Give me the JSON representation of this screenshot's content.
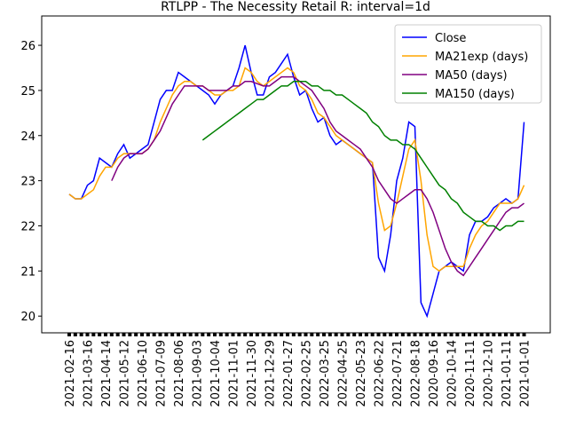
{
  "chart_data": {
    "type": "line",
    "title": "RTLPP - The Necessity Retail R: interval=1d",
    "categories": [
      "2021-02-16",
      null,
      null,
      "2021-03-16",
      null,
      null,
      "2021-04-14",
      null,
      null,
      "2021-05-12",
      null,
      null,
      "2021-06-10",
      null,
      null,
      "2021-07-09",
      null,
      null,
      "2021-08-06",
      null,
      null,
      "2021-09-03",
      null,
      null,
      "2021-10-04",
      null,
      null,
      "2021-11-01",
      null,
      null,
      "2021-11-30",
      null,
      null,
      "2021-12-29",
      null,
      null,
      "2022-01-27",
      null,
      null,
      "2022-02-25",
      null,
      null,
      "2022-03-25",
      null,
      null,
      "2022-04-25",
      null,
      null,
      "2022-05-23",
      null,
      null,
      "2022-06-22",
      null,
      null,
      "2022-07-21",
      null,
      null,
      "2022-08-18",
      null,
      null,
      "2020-09-16",
      null,
      null,
      "2020-10-14",
      null,
      null,
      "2020-11-11",
      null,
      null,
      "2020-12-10",
      null,
      null,
      "2021-01-11",
      null,
      null,
      "2021-01-01"
    ],
    "series": [
      {
        "name": "Close",
        "color": "#0000ff",
        "values": [
          22.7,
          22.6,
          22.6,
          22.9,
          23.0,
          23.5,
          23.4,
          23.3,
          23.6,
          23.8,
          23.5,
          23.6,
          23.7,
          23.8,
          24.3,
          24.8,
          25.0,
          25.0,
          25.4,
          25.3,
          25.2,
          25.1,
          25.0,
          24.9,
          24.7,
          24.9,
          25.0,
          25.1,
          25.5,
          26.0,
          25.4,
          24.9,
          24.9,
          25.3,
          25.4,
          25.6,
          25.8,
          25.3,
          24.9,
          25.0,
          24.6,
          24.3,
          24.4,
          24.0,
          23.8,
          23.9,
          23.8,
          23.7,
          23.6,
          23.5,
          23.4,
          21.3,
          21.0,
          21.8,
          23.0,
          23.5,
          24.3,
          24.2,
          20.3,
          20.0,
          20.5,
          21.0,
          21.1,
          21.2,
          21.1,
          21.0,
          21.8,
          22.1,
          22.1,
          22.2,
          22.4,
          22.5,
          22.6,
          22.5,
          22.6,
          24.3
        ]
      },
      {
        "name": "MA21exp (days)",
        "color": "#ffa500",
        "values": [
          22.7,
          22.6,
          22.6,
          22.7,
          22.8,
          23.1,
          23.3,
          23.3,
          23.5,
          23.6,
          23.6,
          23.6,
          23.6,
          23.7,
          23.9,
          24.3,
          24.6,
          24.9,
          25.1,
          25.2,
          25.2,
          25.1,
          25.1,
          25.0,
          24.9,
          24.9,
          25.0,
          25.0,
          25.1,
          25.5,
          25.4,
          25.2,
          25.1,
          25.2,
          25.3,
          25.4,
          25.5,
          25.4,
          25.1,
          25.0,
          24.8,
          24.5,
          24.4,
          24.2,
          24.0,
          23.9,
          23.8,
          23.7,
          23.6,
          23.5,
          23.4,
          22.5,
          21.9,
          22.0,
          22.5,
          23.1,
          23.7,
          23.9,
          23.0,
          21.8,
          21.1,
          21.0,
          21.1,
          21.1,
          21.1,
          21.1,
          21.5,
          21.8,
          22.0,
          22.1,
          22.3,
          22.5,
          22.5,
          22.5,
          22.6,
          22.9
        ]
      },
      {
        "name": "MA50 (days)",
        "color": "#800080",
        "values": [
          null,
          null,
          null,
          null,
          null,
          null,
          null,
          23.0,
          23.3,
          23.5,
          23.6,
          23.6,
          23.6,
          23.7,
          23.9,
          24.1,
          24.4,
          24.7,
          24.9,
          25.1,
          25.1,
          25.1,
          25.1,
          25.0,
          25.0,
          25.0,
          25.0,
          25.1,
          25.1,
          25.2,
          25.2,
          25.15,
          25.1,
          25.1,
          25.2,
          25.3,
          25.3,
          25.3,
          25.2,
          25.1,
          25.0,
          24.8,
          24.6,
          24.3,
          24.1,
          24.0,
          23.9,
          23.8,
          23.7,
          23.5,
          23.3,
          23.0,
          22.8,
          22.6,
          22.5,
          22.6,
          22.7,
          22.8,
          22.8,
          22.6,
          22.3,
          21.9,
          21.5,
          21.2,
          21.0,
          20.9,
          21.1,
          21.3,
          21.5,
          21.7,
          21.9,
          22.1,
          22.3,
          22.4,
          22.4,
          22.5
        ]
      },
      {
        "name": "MA150 (days)",
        "color": "#008000",
        "values": [
          null,
          null,
          null,
          null,
          null,
          null,
          null,
          null,
          null,
          null,
          null,
          null,
          null,
          null,
          null,
          null,
          null,
          null,
          null,
          null,
          null,
          null,
          23.9,
          24.0,
          24.1,
          24.2,
          24.3,
          24.4,
          24.5,
          24.6,
          24.7,
          24.8,
          24.8,
          24.9,
          25.0,
          25.1,
          25.1,
          25.2,
          25.2,
          25.2,
          25.1,
          25.1,
          25.0,
          25.0,
          24.9,
          24.9,
          24.8,
          24.7,
          24.6,
          24.5,
          24.3,
          24.2,
          24.0,
          23.9,
          23.9,
          23.8,
          23.8,
          23.7,
          23.5,
          23.3,
          23.1,
          22.9,
          22.8,
          22.6,
          22.5,
          22.3,
          22.2,
          22.1,
          22.1,
          22.0,
          22.0,
          21.9,
          22.0,
          22.0,
          22.1,
          22.1
        ]
      }
    ],
    "ylim": [
      19.63,
      26.65
    ],
    "yticks": [
      20,
      21,
      22,
      23,
      24,
      25,
      26
    ],
    "legend": "upper right"
  }
}
